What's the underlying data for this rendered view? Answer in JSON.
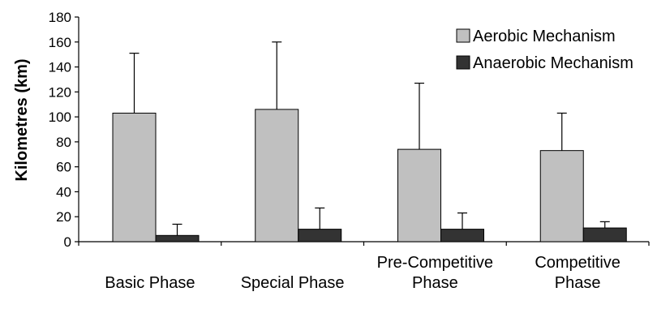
{
  "chart_data": {
    "type": "bar",
    "title": "",
    "xlabel": "",
    "ylabel": "Kilometres (km)",
    "ylim": [
      0,
      180
    ],
    "yticks": [
      0,
      20,
      40,
      60,
      80,
      100,
      120,
      140,
      160,
      180
    ],
    "categories": [
      [
        "Basic Phase"
      ],
      [
        "Special Phase"
      ],
      [
        "Pre-Competitive",
        "Phase"
      ],
      [
        "Competitive",
        "Phase"
      ]
    ],
    "series": [
      {
        "name": "Aerobic Mechanism",
        "color": "#c0c0c0",
        "values": [
          103,
          106,
          74,
          73
        ],
        "error_upper": [
          48,
          54,
          53,
          30
        ]
      },
      {
        "name": "Anaerobic Mechanism",
        "color": "#333333",
        "values": [
          5,
          10,
          10,
          11
        ],
        "error_upper": [
          9,
          17,
          13,
          5
        ]
      }
    ],
    "legend_position": "top-right",
    "grid": false,
    "error_bars": "upper"
  }
}
